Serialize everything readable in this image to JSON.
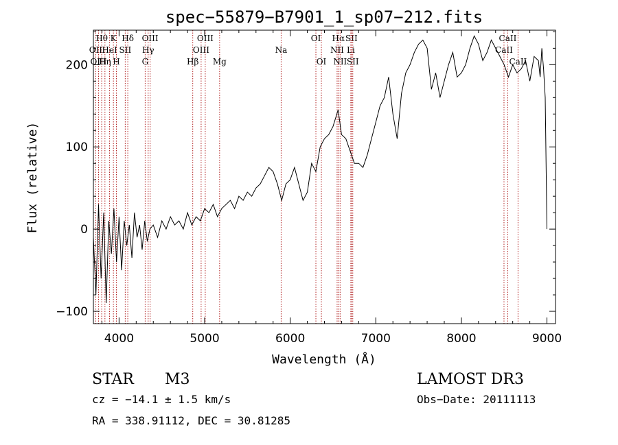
{
  "chart_data": {
    "type": "line",
    "title": "spec−55879−B7901_1_sp07−212.fits",
    "xlabel": "Wavelength (Å)",
    "ylabel": "Flux (relative)",
    "xlim": [
      3700,
      9100
    ],
    "ylim": [
      -115,
      242
    ],
    "x_ticks": [
      4000,
      5000,
      6000,
      7000,
      8000,
      9000
    ],
    "x_tick_labels": [
      "4000",
      "5000",
      "6000",
      "7000",
      "8000",
      "9000"
    ],
    "y_ticks": [
      -100,
      0,
      100,
      200
    ],
    "y_tick_labels": [
      "−100",
      "0",
      "100",
      "200"
    ],
    "series": [
      {
        "name": "flux",
        "x": [
          3700,
          3730,
          3760,
          3790,
          3820,
          3850,
          3880,
          3910,
          3940,
          3970,
          4000,
          4030,
          4060,
          4090,
          4120,
          4150,
          4180,
          4210,
          4240,
          4270,
          4300,
          4330,
          4360,
          4400,
          4450,
          4500,
          4550,
          4600,
          4650,
          4700,
          4750,
          4800,
          4850,
          4900,
          4950,
          5000,
          5050,
          5100,
          5150,
          5200,
          5250,
          5300,
          5350,
          5400,
          5450,
          5500,
          5550,
          5600,
          5650,
          5700,
          5750,
          5800,
          5850,
          5900,
          5950,
          6000,
          6050,
          6100,
          6150,
          6200,
          6250,
          6300,
          6350,
          6400,
          6450,
          6500,
          6530,
          6560,
          6600,
          6650,
          6700,
          6750,
          6800,
          6850,
          6900,
          6950,
          7000,
          7050,
          7100,
          7150,
          7200,
          7250,
          7300,
          7350,
          7400,
          7450,
          7500,
          7550,
          7600,
          7650,
          7700,
          7750,
          7800,
          7850,
          7900,
          7950,
          8000,
          8050,
          8100,
          8150,
          8200,
          8250,
          8300,
          8350,
          8400,
          8450,
          8500,
          8550,
          8600,
          8650,
          8700,
          8750,
          8800,
          8850,
          8900,
          8920,
          8940,
          8960,
          8980,
          9000
        ],
        "y": [
          -10,
          -80,
          30,
          -60,
          20,
          -90,
          10,
          -30,
          25,
          -40,
          15,
          -50,
          10,
          -20,
          5,
          -35,
          20,
          -10,
          5,
          -25,
          10,
          -15,
          0,
          5,
          -10,
          10,
          0,
          15,
          5,
          10,
          0,
          20,
          5,
          15,
          10,
          25,
          20,
          30,
          15,
          25,
          30,
          35,
          25,
          40,
          35,
          45,
          40,
          50,
          55,
          65,
          75,
          70,
          55,
          35,
          55,
          60,
          75,
          55,
          35,
          45,
          80,
          70,
          100,
          110,
          115,
          125,
          135,
          145,
          115,
          110,
          95,
          80,
          80,
          75,
          90,
          110,
          130,
          150,
          160,
          185,
          140,
          110,
          165,
          190,
          200,
          215,
          225,
          230,
          220,
          170,
          190,
          160,
          180,
          200,
          215,
          185,
          190,
          200,
          220,
          235,
          225,
          205,
          215,
          230,
          220,
          210,
          200,
          185,
          200,
          190,
          195,
          205,
          180,
          210,
          205,
          185,
          220,
          195,
          160,
          0
        ]
      }
    ],
    "lines": [
      {
        "name": "OII",
        "x": 3727,
        "row": 1
      },
      {
        "name": "OIII",
        "x": 3760,
        "row": 2
      },
      {
        "name": "Hθ",
        "x": 3797,
        "row": 0
      },
      {
        "name": "Hη",
        "x": 3835,
        "row": 2
      },
      {
        "name": "HeI",
        "x": 3889,
        "row": 1
      },
      {
        "name": "K",
        "x": 3934,
        "row": 0
      },
      {
        "name": "H",
        "x": 3969,
        "row": 2
      },
      {
        "name": "SII",
        "x": 4072,
        "row": 1
      },
      {
        "name": "Hδ",
        "x": 4102,
        "row": 0
      },
      {
        "name": "G",
        "x": 4305,
        "row": 2
      },
      {
        "name": "Hγ",
        "x": 4340,
        "row": 1
      },
      {
        "name": "OIII",
        "x": 4363,
        "row": 0
      },
      {
        "name": "Hβ",
        "x": 4861,
        "row": 2
      },
      {
        "name": "OIII",
        "x": 4959,
        "row": 1
      },
      {
        "name": "OIII",
        "x": 5007,
        "row": 0
      },
      {
        "name": "Mg",
        "x": 5175,
        "row": 2
      },
      {
        "name": "Na",
        "x": 5894,
        "row": 1
      },
      {
        "name": "OI",
        "x": 6300,
        "row": 0
      },
      {
        "name": "OI",
        "x": 6364,
        "row": 2
      },
      {
        "name": "NII",
        "x": 6548,
        "row": 1
      },
      {
        "name": "Hα",
        "x": 6563,
        "row": 0
      },
      {
        "name": "NII",
        "x": 6583,
        "row": 2
      },
      {
        "name": "Li",
        "x": 6708,
        "row": 1
      },
      {
        "name": "SII",
        "x": 6716,
        "row": 0
      },
      {
        "name": "SII",
        "x": 6731,
        "row": 2
      },
      {
        "name": "CaII",
        "x": 8498,
        "row": 1
      },
      {
        "name": "CaII",
        "x": 8542,
        "row": 0
      },
      {
        "name": "CaII",
        "x": 8662,
        "row": 2
      }
    ],
    "grid": false,
    "legend": "none"
  },
  "info": {
    "class": "STAR",
    "subclass": "M3",
    "survey": "LAMOST DR3",
    "redshift": "cz = −14.1 ± 1.5 km/s",
    "obs_date": "Obs−Date: 20111113",
    "coords": "RA = 338.91112, DEC =  30.81285"
  }
}
